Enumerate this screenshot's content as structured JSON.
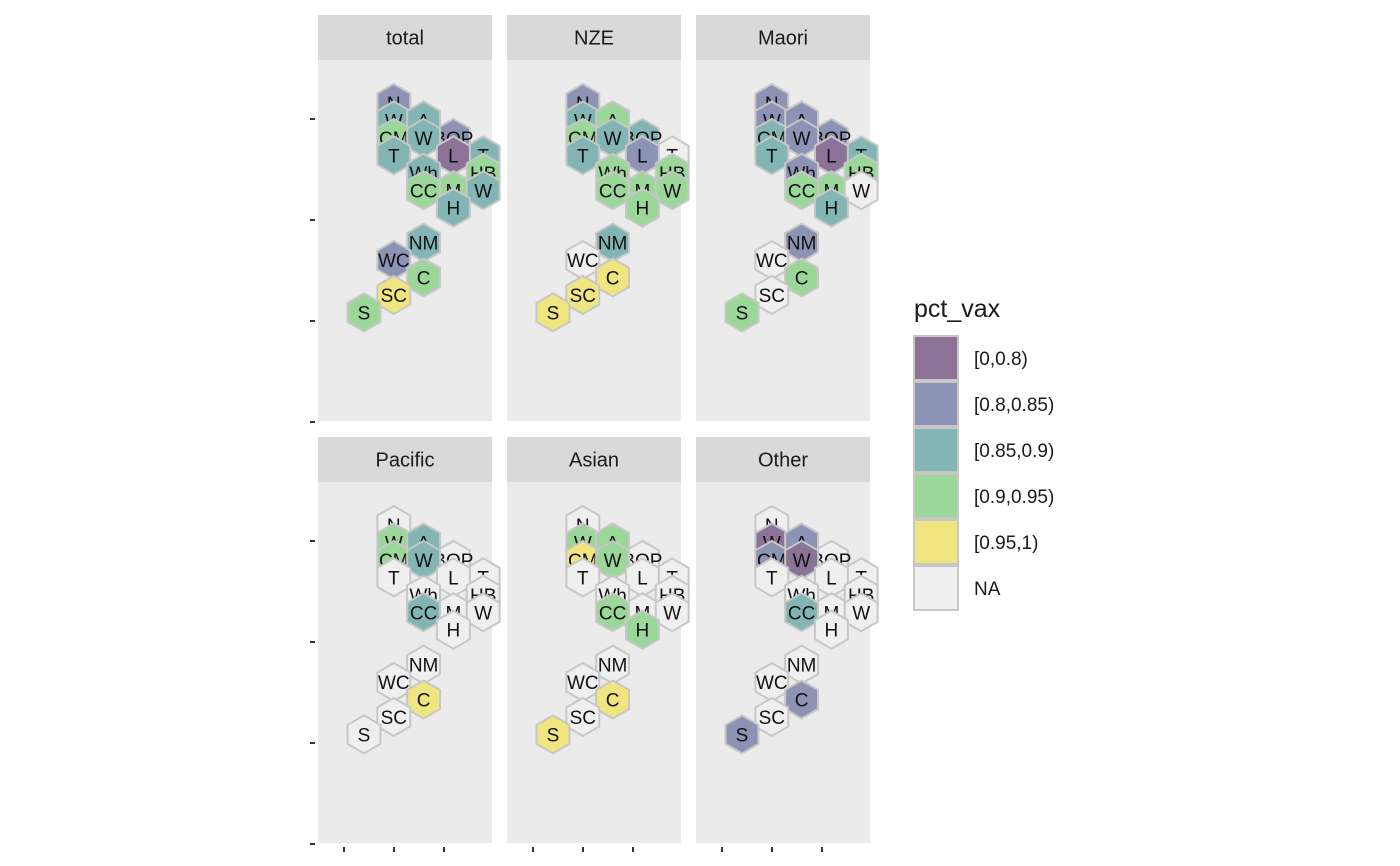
{
  "chart_data": {
    "type": "hex-map",
    "legend": {
      "title": "pct_vax",
      "position": "right",
      "entries": [
        {
          "label": "[0,0.8)",
          "color": "#8B7296"
        },
        {
          "label": "[0.8,0.85)",
          "color": "#8D93B5"
        },
        {
          "label": "[0.85,0.9)",
          "color": "#82B5B3"
        },
        {
          "label": "[0.9,0.95)",
          "color": "#9CD79A"
        },
        {
          "label": "[0.95,1)",
          "color": "#F1E580"
        },
        {
          "label": "NA",
          "color": "#EFEFEF"
        }
      ]
    },
    "regions": [
      {
        "id": "northland",
        "label": "N",
        "col": 1,
        "row": 0
      },
      {
        "id": "waitemata",
        "label": "W",
        "col": 1,
        "row": 1
      },
      {
        "id": "auckland",
        "label": "A",
        "col": 2,
        "row": 1
      },
      {
        "id": "counties-manukau",
        "label": "CM",
        "col": 1,
        "row": 2
      },
      {
        "id": "bay-of-plenty",
        "label": "BOP",
        "col": 3,
        "row": 2
      },
      {
        "id": "waikato",
        "label": "W",
        "col": 2,
        "row": 2
      },
      {
        "id": "tairawhiti",
        "label": "T",
        "col": 4,
        "row": 3
      },
      {
        "id": "taranaki",
        "label": "T",
        "col": 1,
        "row": 3
      },
      {
        "id": "lakes",
        "label": "L",
        "col": 3,
        "row": 3
      },
      {
        "id": "whanganui",
        "label": "Wh",
        "col": 2,
        "row": 4
      },
      {
        "id": "hawkes-bay",
        "label": "HB",
        "col": 4,
        "row": 4
      },
      {
        "id": "midcentral",
        "label": "M",
        "col": 3,
        "row": 5
      },
      {
        "id": "capital-coast",
        "label": "CC",
        "col": 2,
        "row": 5
      },
      {
        "id": "wairarapa",
        "label": "W",
        "col": 4,
        "row": 5
      },
      {
        "id": "hutt",
        "label": "H",
        "col": 3,
        "row": 6
      },
      {
        "id": "nelson-marlborough",
        "label": "NM",
        "col": 2,
        "row": 8
      },
      {
        "id": "west-coast",
        "label": "WC",
        "col": 1,
        "row": 9
      },
      {
        "id": "canterbury",
        "label": "C",
        "col": 2,
        "row": 10
      },
      {
        "id": "south-canterbury",
        "label": "SC",
        "col": 1,
        "row": 11
      },
      {
        "id": "southern",
        "label": "S",
        "col": 0,
        "row": 12
      }
    ],
    "panels": [
      {
        "title": "total",
        "categories": {
          "northland": "[0.8,0.85)",
          "waitemata": "[0.85,0.9)",
          "auckland": "[0.85,0.9)",
          "counties-manukau": "[0.9,0.95)",
          "bay-of-plenty": "[0.8,0.85)",
          "waikato": "[0.85,0.9)",
          "tairawhiti": "[0.85,0.9)",
          "taranaki": "[0.85,0.9)",
          "lakes": "[0,0.8)",
          "whanganui": "[0.85,0.9)",
          "hawkes-bay": "[0.9,0.95)",
          "midcentral": "[0.9,0.95)",
          "capital-coast": "[0.9,0.95)",
          "wairarapa": "[0.85,0.9)",
          "hutt": "[0.85,0.9)",
          "nelson-marlborough": "[0.85,0.9)",
          "west-coast": "[0.8,0.85)",
          "canterbury": "[0.9,0.95)",
          "south-canterbury": "[0.95,1)",
          "southern": "[0.9,0.95)"
        }
      },
      {
        "title": "NZE",
        "categories": {
          "northland": "[0.8,0.85)",
          "waitemata": "[0.85,0.9)",
          "auckland": "[0.9,0.95)",
          "counties-manukau": "[0.9,0.95)",
          "bay-of-plenty": "[0.85,0.9)",
          "waikato": "[0.85,0.9)",
          "tairawhiti": "NA",
          "taranaki": "[0.85,0.9)",
          "lakes": "[0.8,0.85)",
          "whanganui": "[0.9,0.95)",
          "hawkes-bay": "[0.9,0.95)",
          "midcentral": "[0.9,0.95)",
          "capital-coast": "[0.9,0.95)",
          "wairarapa": "[0.9,0.95)",
          "hutt": "[0.9,0.95)",
          "nelson-marlborough": "[0.85,0.9)",
          "west-coast": "NA",
          "canterbury": "[0.95,1)",
          "south-canterbury": "[0.95,1)",
          "southern": "[0.95,1)"
        }
      },
      {
        "title": "Maori",
        "categories": {
          "northland": "[0.8,0.85)",
          "waitemata": "[0.8,0.85)",
          "auckland": "[0.8,0.85)",
          "counties-manukau": "[0.85,0.9)",
          "bay-of-plenty": "[0.8,0.85)",
          "waikato": "[0.8,0.85)",
          "tairawhiti": "[0.85,0.9)",
          "taranaki": "[0.85,0.9)",
          "lakes": "[0,0.8)",
          "whanganui": "[0.8,0.85)",
          "hawkes-bay": "[0.9,0.95)",
          "midcentral": "[0.9,0.95)",
          "capital-coast": "[0.9,0.95)",
          "wairarapa": "NA",
          "hutt": "[0.85,0.9)",
          "nelson-marlborough": "[0.8,0.85)",
          "west-coast": "NA",
          "canterbury": "[0.9,0.95)",
          "south-canterbury": "NA",
          "southern": "[0.9,0.95)"
        }
      },
      {
        "title": "Pacific",
        "categories": {
          "northland": "NA",
          "waitemata": "[0.9,0.95)",
          "auckland": "[0.85,0.9)",
          "counties-manukau": "[0.9,0.95)",
          "bay-of-plenty": "NA",
          "waikato": "[0.85,0.9)",
          "tairawhiti": "NA",
          "taranaki": "NA",
          "lakes": "NA",
          "whanganui": "NA",
          "hawkes-bay": "NA",
          "midcentral": "NA",
          "capital-coast": "[0.85,0.9)",
          "wairarapa": "NA",
          "hutt": "NA",
          "nelson-marlborough": "NA",
          "west-coast": "NA",
          "canterbury": "[0.95,1)",
          "south-canterbury": "NA",
          "southern": "NA"
        }
      },
      {
        "title": "Asian",
        "categories": {
          "northland": "NA",
          "waitemata": "[0.9,0.95)",
          "auckland": "[0.9,0.95)",
          "counties-manukau": "[0.95,1)",
          "bay-of-plenty": "NA",
          "waikato": "[0.9,0.95)",
          "tairawhiti": "NA",
          "taranaki": "NA",
          "lakes": "NA",
          "whanganui": "NA",
          "hawkes-bay": "NA",
          "midcentral": "NA",
          "capital-coast": "[0.9,0.95)",
          "wairarapa": "NA",
          "hutt": "[0.9,0.95)",
          "nelson-marlborough": "NA",
          "west-coast": "NA",
          "canterbury": "[0.95,1)",
          "south-canterbury": "NA",
          "southern": "[0.95,1)"
        }
      },
      {
        "title": "Other",
        "categories": {
          "northland": "NA",
          "waitemata": "[0,0.8)",
          "auckland": "[0.8,0.85)",
          "counties-manukau": "[0.8,0.85)",
          "bay-of-plenty": "NA",
          "waikato": "[0,0.8)",
          "tairawhiti": "NA",
          "taranaki": "NA",
          "lakes": "NA",
          "whanganui": "NA",
          "hawkes-bay": "NA",
          "midcentral": "NA",
          "capital-coast": "[0.85,0.9)",
          "wairarapa": "NA",
          "hutt": "NA",
          "nelson-marlborough": "NA",
          "west-coast": "NA",
          "canterbury": "[0.8,0.85)",
          "south-canterbury": "NA",
          "southern": "[0.8,0.85)"
        }
      }
    ]
  }
}
